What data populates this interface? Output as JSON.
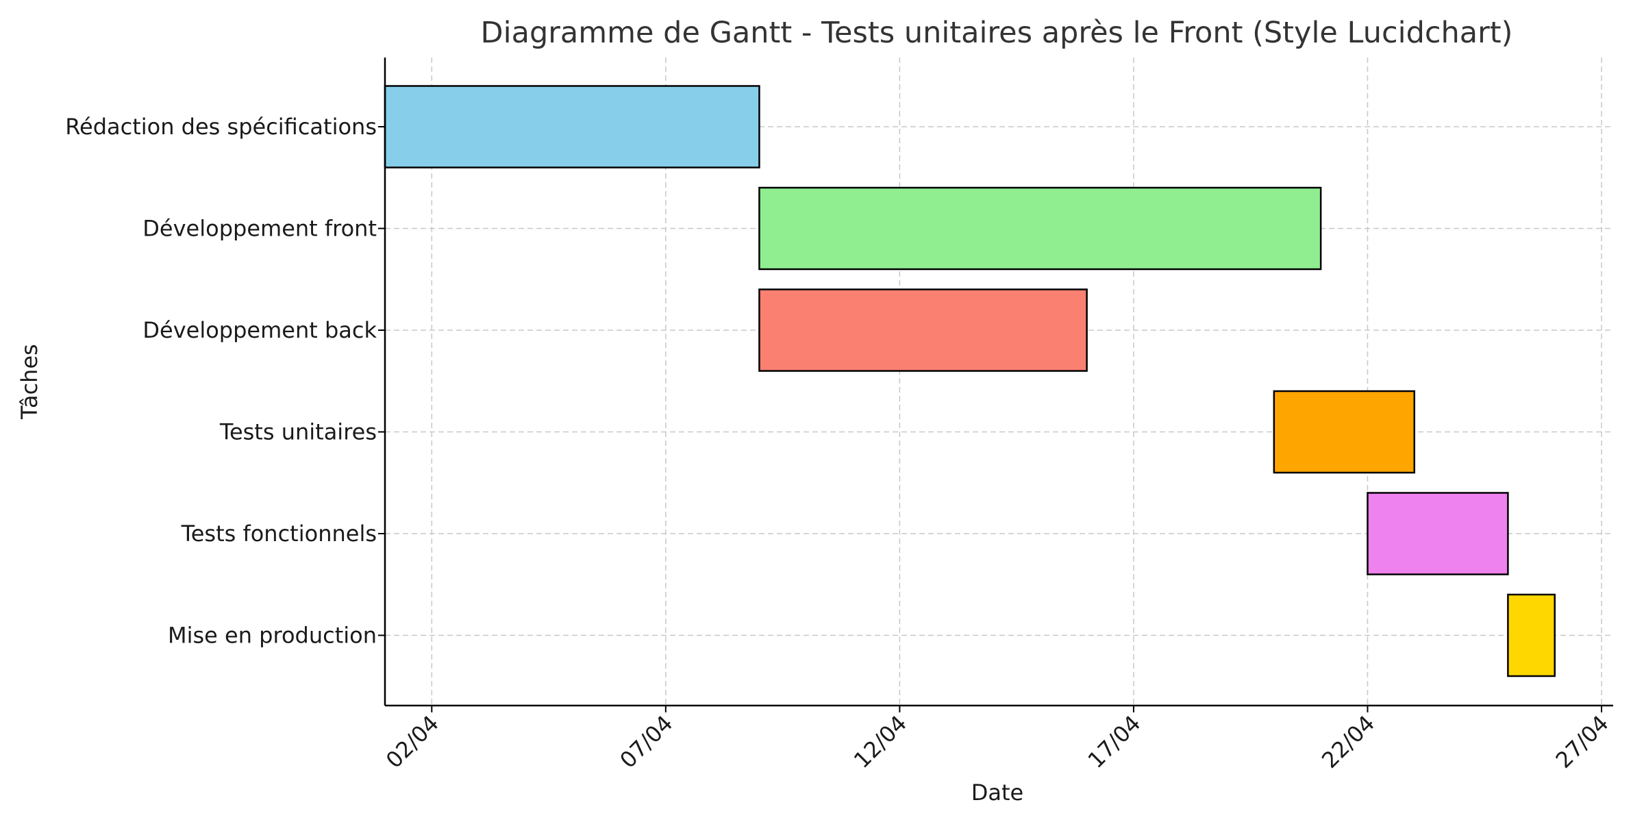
{
  "chart_data": {
    "type": "gantt",
    "title": "Diagramme de Gantt - Tests unitaires après le Front (Style Lucidchart)",
    "xlabel": "Date",
    "ylabel": "Tâches",
    "x_range": [
      "2024-04-01",
      "2024-04-27"
    ],
    "x_ticks": [
      {
        "date": "2024-04-02",
        "label": "02/04"
      },
      {
        "date": "2024-04-07",
        "label": "07/04"
      },
      {
        "date": "2024-04-12",
        "label": "12/04"
      },
      {
        "date": "2024-04-17",
        "label": "17/04"
      },
      {
        "date": "2024-04-22",
        "label": "22/04"
      },
      {
        "date": "2024-04-27",
        "label": "27/04"
      }
    ],
    "grid": true,
    "tasks": [
      {
        "name": "Rédaction des spécifications",
        "start": "2024-04-01",
        "end": "2024-04-09",
        "color": "#87CEEB"
      },
      {
        "name": "Développement front",
        "start": "2024-04-09",
        "end": "2024-04-21",
        "color": "#90EE90"
      },
      {
        "name": "Développement back",
        "start": "2024-04-09",
        "end": "2024-04-16",
        "color": "#FA8072"
      },
      {
        "name": "Tests unitaires",
        "start": "2024-04-20",
        "end": "2024-04-23",
        "color": "#FFA500"
      },
      {
        "name": "Tests fonctionnels",
        "start": "2024-04-22",
        "end": "2024-04-25",
        "color": "#EE82EE"
      },
      {
        "name": "Mise en production",
        "start": "2024-04-25",
        "end": "2024-04-26",
        "color": "#FFD700"
      }
    ]
  }
}
